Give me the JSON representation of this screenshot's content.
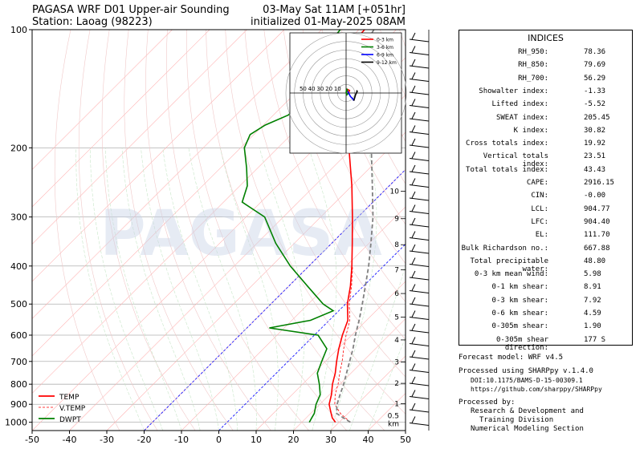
{
  "title": {
    "left_line1": "PAGASA WRF D01 Upper-air Sounding",
    "left_line2": "Station: Laoag (98223)",
    "right_line1": "03-May Sat 11AM [+051hr]",
    "right_line2": "initialized 01-May-2025 08AM"
  },
  "chart_data": {
    "type": "line",
    "subtype": "skew-T log-p sounding",
    "xlim": [
      -50,
      50
    ],
    "ylim": [
      1050,
      100
    ],
    "y_scale": "log",
    "x_ticks": [
      -50,
      -40,
      -30,
      -20,
      -10,
      0,
      10,
      20,
      30,
      40,
      50
    ],
    "y_ticks": [
      1000,
      900,
      800,
      700,
      600,
      500,
      400,
      300,
      200,
      100
    ],
    "height_labels": [
      "1",
      "2",
      "3",
      "4",
      "5",
      "6",
      "7",
      "8",
      "9",
      "10"
    ],
    "height_label_pressures": [
      897,
      796,
      703,
      617,
      540,
      470,
      409,
      353,
      303,
      258
    ],
    "surface_height_labels": [
      "0.5",
      "km"
    ],
    "grid": true,
    "legend_position": "bottom-left",
    "series": [
      {
        "name": "TEMP",
        "color": "#ff0000",
        "pressure": [
          1000,
          975,
          950,
          925,
          900,
          850,
          800,
          750,
          700,
          650,
          600,
          550,
          500,
          450,
          400,
          350,
          300,
          250,
          200,
          175,
          150,
          125,
          110,
          100
        ],
        "values": [
          29.0,
          27.0,
          25.5,
          24.0,
          22.5,
          20.5,
          18.0,
          15.8,
          13.0,
          10.2,
          7.5,
          5.0,
          0.5,
          -3.5,
          -8.5,
          -14.5,
          -21.5,
          -30.0,
          -41.0,
          -47.0,
          -54.0,
          -62.5,
          -68.0,
          -68.5
        ]
      },
      {
        "name": "V.TEMP",
        "color": "#ff0000",
        "dashed": true,
        "pressure": [
          1000,
          975,
          950,
          925,
          900,
          850,
          800,
          750,
          700,
          650,
          600,
          550,
          500,
          450,
          400
        ],
        "values": [
          33.0,
          30.5,
          28.0,
          26.0,
          24.0,
          21.5,
          19.5,
          17.0,
          14.5,
          11.5,
          8.5,
          5.5,
          1.0,
          -3.2,
          -8.3
        ]
      },
      {
        "name": "DWPT",
        "color": "#008000",
        "pressure": [
          1000,
          975,
          950,
          925,
          900,
          850,
          800,
          750,
          700,
          650,
          600,
          575,
          550,
          520,
          500,
          450,
          400,
          350,
          300,
          275,
          250,
          225,
          200,
          185,
          175,
          165,
          150,
          130,
          115,
          100
        ],
        "values": [
          22.0,
          21.5,
          21.0,
          20.0,
          19.0,
          17.5,
          14.5,
          11.0,
          9.0,
          7.0,
          1.0,
          -14.0,
          -5.0,
          -1.5,
          -6.0,
          -15.0,
          -25.0,
          -35.0,
          -45.0,
          -55.0,
          -58.0,
          -63.0,
          -69.0,
          -71.0,
          -69.5,
          -66.0,
          -66.0,
          -70.5,
          -74.0,
          -75.0
        ]
      },
      {
        "name": "Parcel",
        "color": "#808080",
        "dashed": true,
        "pressure": [
          1000,
          975,
          950,
          925,
          905,
          850,
          800,
          750,
          700,
          650,
          600,
          550,
          500,
          450,
          400,
          350,
          300,
          250,
          200,
          150,
          112,
          100
        ],
        "values": [
          33.0,
          30.0,
          27.0,
          25.8,
          24.8,
          22.8,
          21.0,
          18.8,
          16.5,
          14.0,
          11.0,
          8.0,
          4.5,
          0.5,
          -4.0,
          -9.5,
          -16.0,
          -24.5,
          -35.0,
          -50.0,
          -64.0,
          -66.0
        ]
      }
    ],
    "hodograph": {
      "type": "polar",
      "ring_labels": [
        "50",
        "40",
        "30",
        "20",
        "10"
      ],
      "rmax": 70,
      "legend": [
        {
          "name": "0-3 km",
          "color": "#ff0000"
        },
        {
          "name": "3-6 km",
          "color": "#008000"
        },
        {
          "name": "6-9 km",
          "color": "#0000ff"
        },
        {
          "name": "9-12 km",
          "color": "#000000"
        }
      ],
      "segments": [
        {
          "color": "#ff0000",
          "u": [
            0,
            1,
            2,
            4,
            3
          ],
          "v": [
            0,
            2,
            4,
            3,
            0
          ]
        },
        {
          "color": "#008000",
          "u": [
            3,
            1,
            0,
            1,
            2
          ],
          "v": [
            0,
            -2,
            1,
            4,
            2
          ]
        },
        {
          "color": "#0000ff",
          "u": [
            2,
            5,
            8,
            9
          ],
          "v": [
            2,
            -4,
            -7,
            -9
          ]
        },
        {
          "color": "#000000",
          "u": [
            9,
            11,
            13,
            12
          ],
          "v": [
            -9,
            -2,
            2,
            3
          ]
        }
      ]
    }
  },
  "indices": {
    "title": "INDICES",
    "rows": [
      {
        "label": "RH_950:",
        "value": "78.36"
      },
      {
        "label": "RH_850:",
        "value": "79.69"
      },
      {
        "label": "RH_700:",
        "value": "56.29"
      },
      {
        "label": "Showalter index:",
        "value": "-1.33"
      },
      {
        "label": "Lifted index:",
        "value": "-5.52"
      },
      {
        "label": "SWEAT index:",
        "value": "205.45"
      },
      {
        "label": "K index:",
        "value": "30.82"
      },
      {
        "label": "Cross totals index:",
        "value": "19.92"
      },
      {
        "label": "Vertical totals index:",
        "value": "23.51"
      },
      {
        "label": "Total totals index:",
        "value": "43.43"
      },
      {
        "label": "CAPE:",
        "value": "2916.15"
      },
      {
        "label": "CIN:",
        "value": "-0.00"
      },
      {
        "label": "LCL:",
        "value": "904.77"
      },
      {
        "label": "LFC:",
        "value": "904.40"
      },
      {
        "label": "EL:",
        "value": "111.70"
      },
      {
        "label": "Bulk Richardson no.:",
        "value": "667.88"
      },
      {
        "label": "Total precipitable water:",
        "value": "48.80"
      },
      {
        "label": "0-3 km mean wind:",
        "value": "5.98"
      },
      {
        "label": "0-1 km shear:",
        "value": "8.91"
      },
      {
        "label": "0-3 km shear:",
        "value": "7.92"
      },
      {
        "label": "0-6 km shear:",
        "value": "4.59"
      },
      {
        "label": "0-305m shear:",
        "value": "1.90"
      },
      {
        "label": "0-305m shear direction:",
        "value": "177 S"
      }
    ]
  },
  "footer": {
    "model": "Forecast model: WRF v4.5",
    "processed_using": "Processed using SHARPpy v.1.4.0",
    "doi": "DOI:10.1175/BAMS-D-15-00309.1",
    "url": "https://github.com/sharppy/SHARPpy",
    "processed_by": "Processed by:",
    "org_line1": "Research & Development and",
    "org_line2": "Training Division",
    "org_line3": "Numerical Modeling Section"
  },
  "watermark": "PAGASA"
}
